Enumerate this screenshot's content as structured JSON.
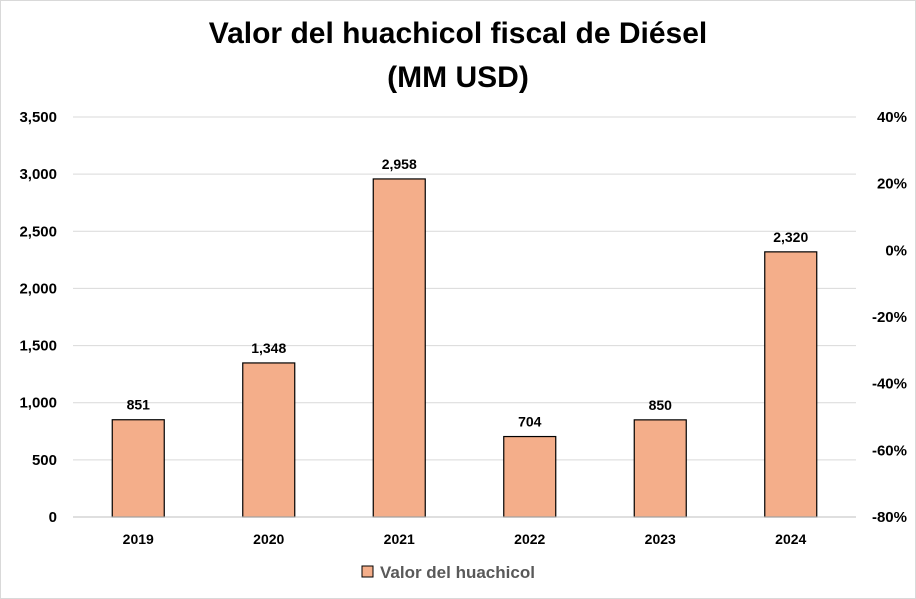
{
  "chart_data": {
    "type": "bar",
    "title": "Valor del huachicol fiscal de Diésel",
    "subtitle": "(MM USD)",
    "categories": [
      "2019",
      "2020",
      "2021",
      "2022",
      "2023",
      "2024"
    ],
    "series": [
      {
        "name": "Valor del huachicol",
        "values": [
          851,
          1348,
          2958,
          704,
          850,
          2320
        ],
        "labels": [
          "851",
          "1,348",
          "2,958",
          "704",
          "850",
          "2,320"
        ],
        "color": "#F4AE8A",
        "border_color": "#000000"
      }
    ],
    "ylim": [
      0,
      3500
    ],
    "y_ticks": [
      "0",
      "500",
      "1,000",
      "1,500",
      "2,000",
      "2,500",
      "3,000",
      "3,500"
    ],
    "y2lim": [
      -0.8,
      0.4
    ],
    "y2_ticks": [
      "-80%",
      "-60%",
      "-40%",
      "-20%",
      "0%",
      "20%",
      "40%"
    ],
    "grid": true,
    "grid_color": "#d9d9d9",
    "legend_position": "bottom"
  }
}
